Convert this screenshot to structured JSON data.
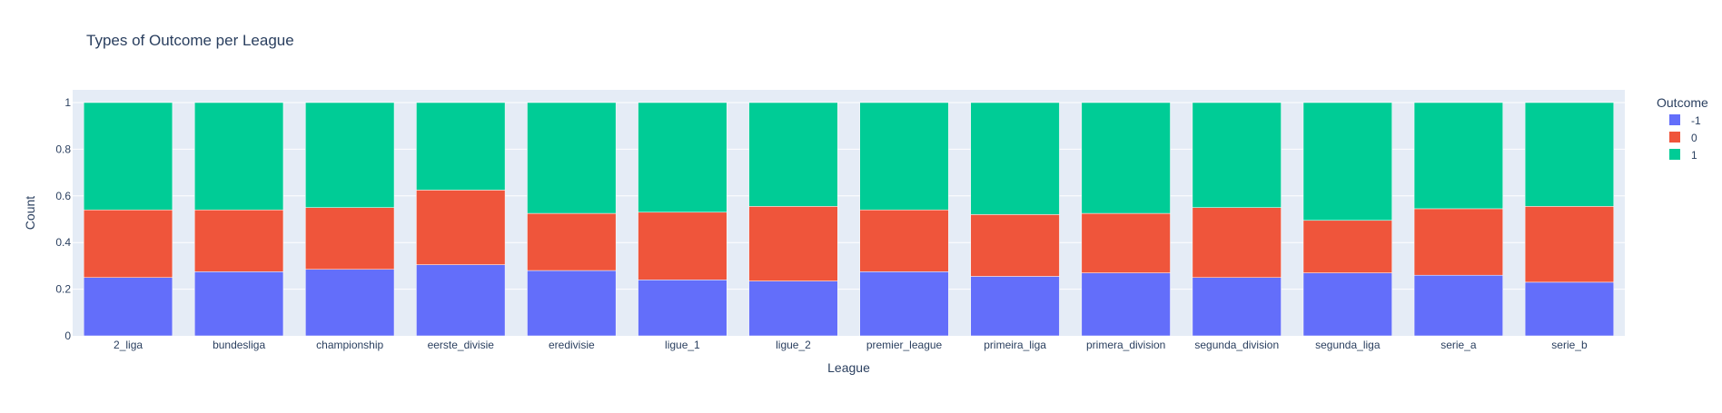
{
  "chart_data": {
    "type": "bar",
    "stacked": true,
    "title": "Types of Outcome per League",
    "xlabel": "League",
    "ylabel": "Count",
    "ylim": [
      0,
      1
    ],
    "yticks": [
      0,
      0.2,
      0.4,
      0.6,
      0.8,
      1
    ],
    "ytick_labels": [
      "0",
      "0.2",
      "0.4",
      "0.6",
      "0.8",
      "1"
    ],
    "grid": true,
    "legend_position": "top-right",
    "legend_title": "Outcome",
    "categories": [
      "2_liga",
      "bundesliga",
      "championship",
      "eerste_divisie",
      "eredivisie",
      "ligue_1",
      "ligue_2",
      "premier_league",
      "primeira_liga",
      "primera_division",
      "segunda_division",
      "segunda_liga",
      "serie_a",
      "serie_b"
    ],
    "series": [
      {
        "name": "-1",
        "color": "#636efa",
        "values": [
          0.25,
          0.275,
          0.285,
          0.305,
          0.28,
          0.24,
          0.235,
          0.275,
          0.255,
          0.27,
          0.25,
          0.27,
          0.26,
          0.23
        ]
      },
      {
        "name": "0",
        "color": "#ef553b",
        "values": [
          0.29,
          0.265,
          0.265,
          0.32,
          0.245,
          0.29,
          0.32,
          0.265,
          0.265,
          0.255,
          0.3,
          0.225,
          0.285,
          0.325
        ]
      },
      {
        "name": "1",
        "color": "#00cc96",
        "values": [
          0.46,
          0.46,
          0.45,
          0.375,
          0.475,
          0.47,
          0.445,
          0.46,
          0.48,
          0.475,
          0.45,
          0.505,
          0.455,
          0.445
        ]
      }
    ]
  }
}
